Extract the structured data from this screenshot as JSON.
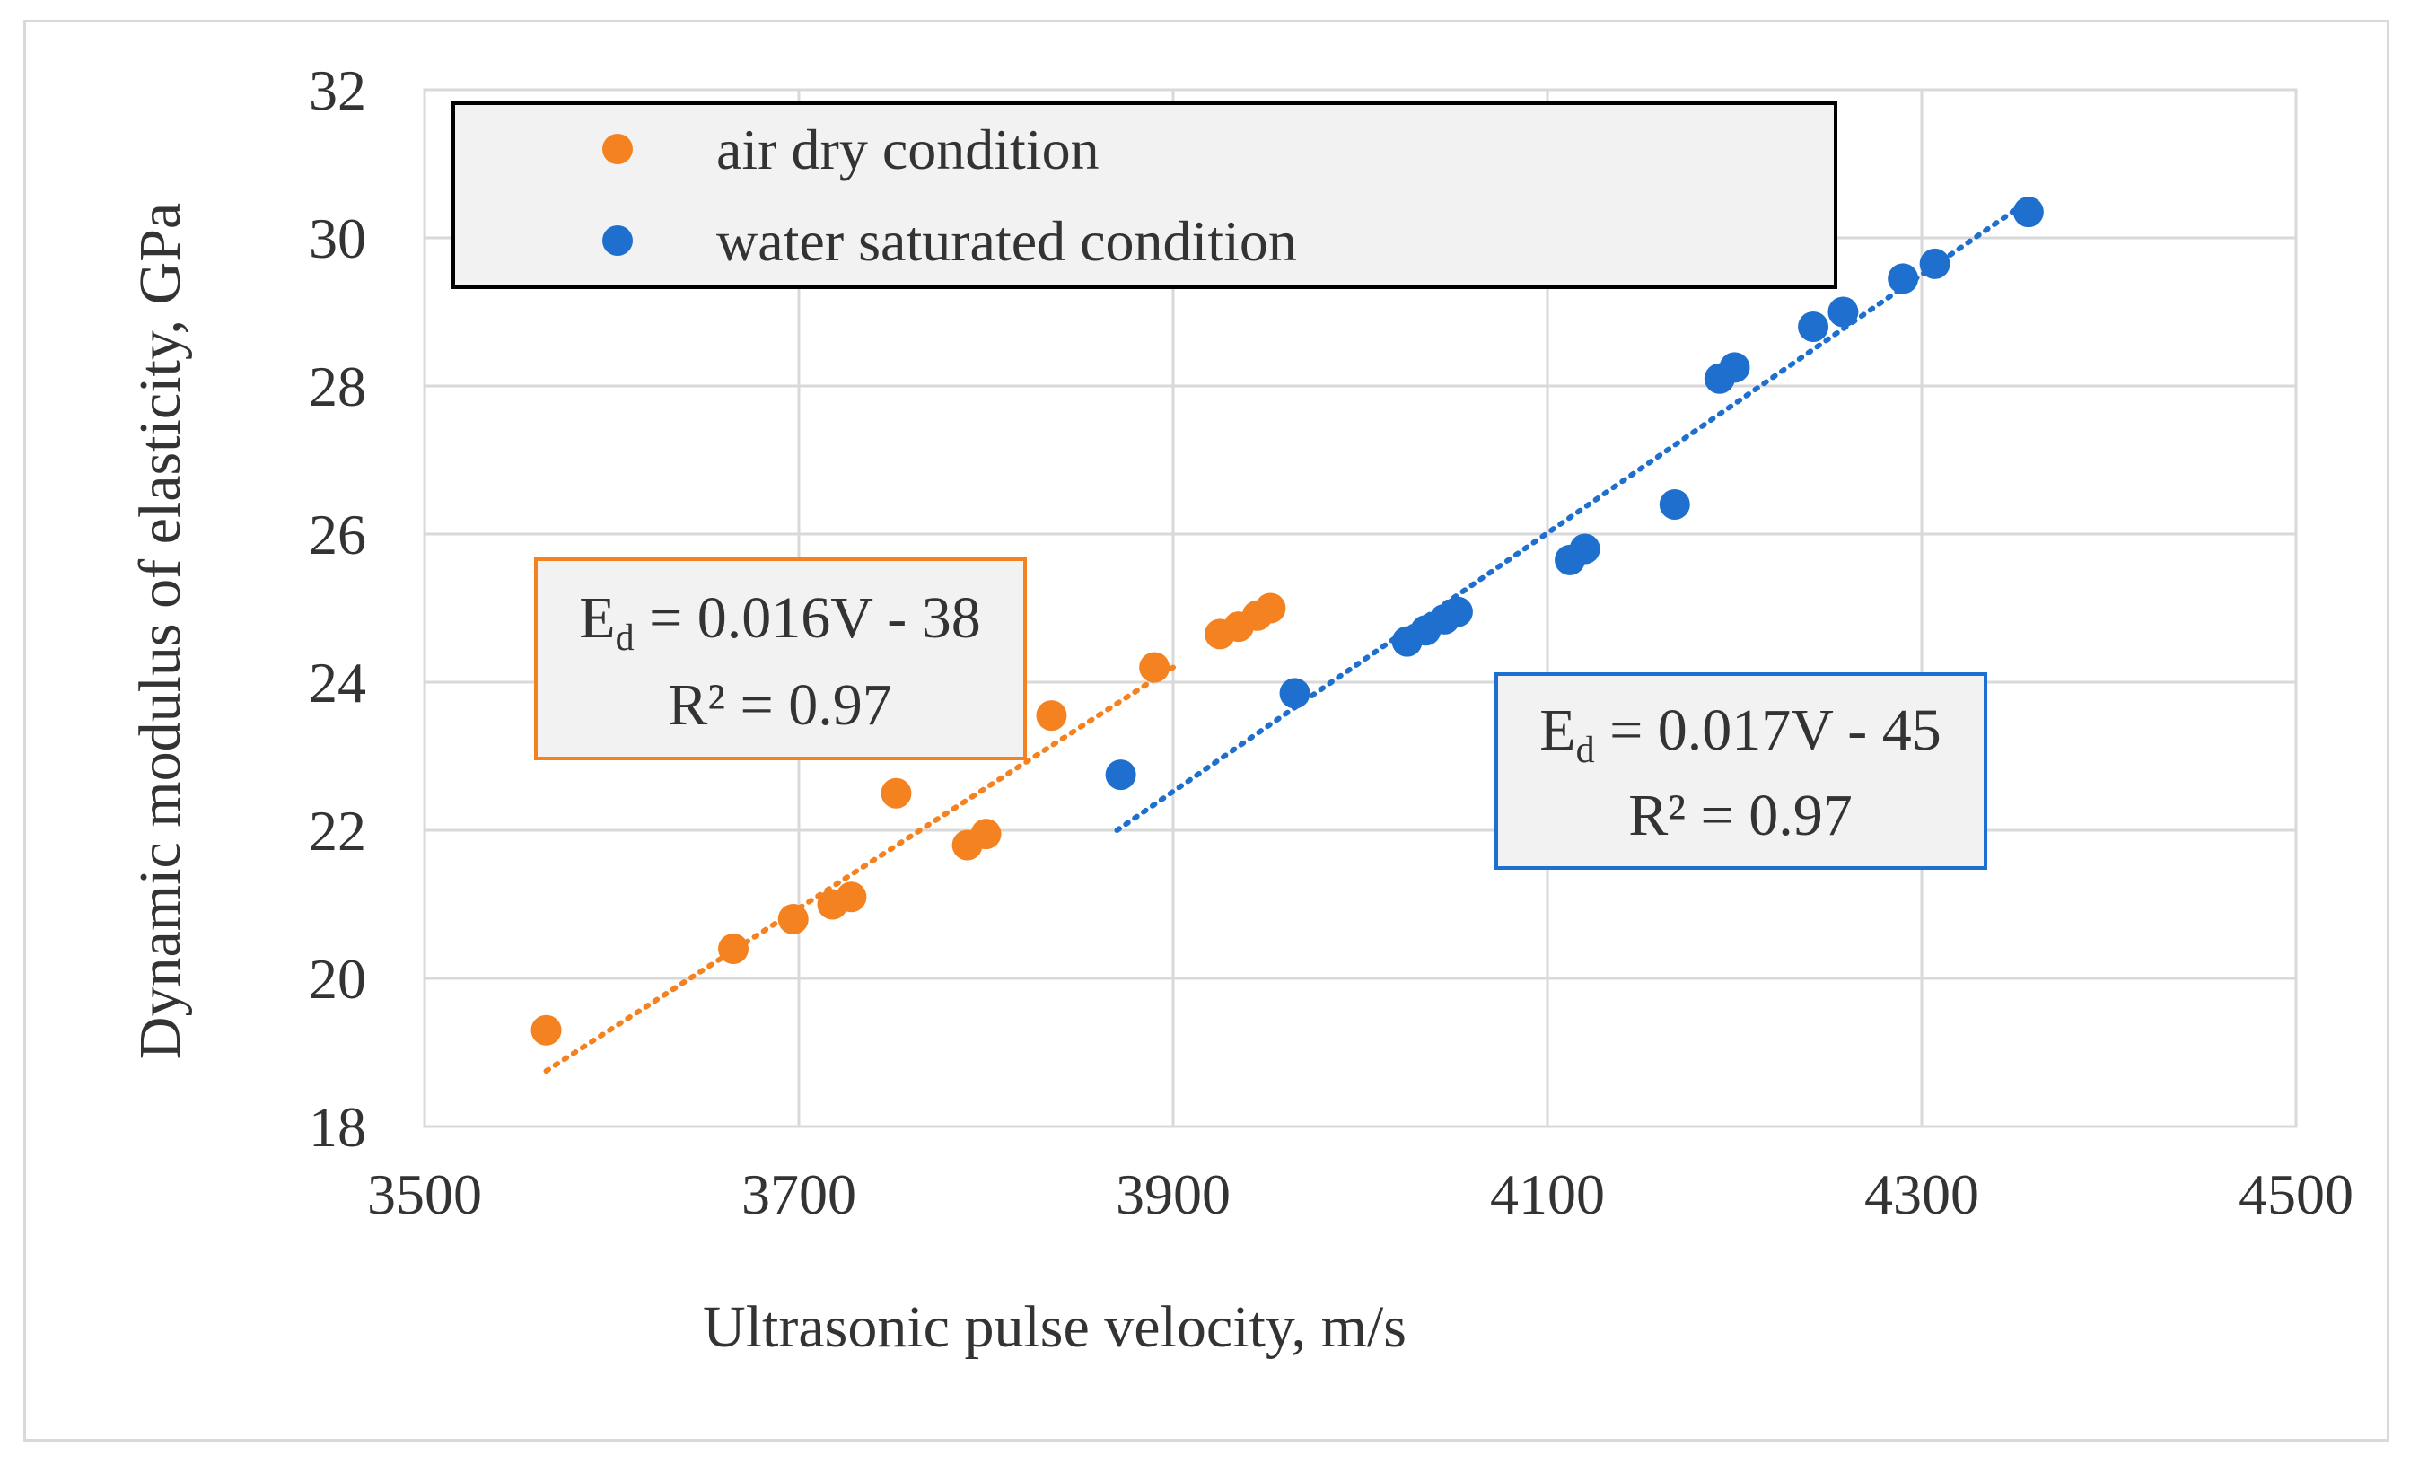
{
  "chart_data": {
    "type": "scatter",
    "title": "",
    "xlabel": "Ultrasonic pulse velocity, m/s",
    "ylabel": "Dynamic modulus of elasticity, GPa",
    "xlim": [
      3500,
      4500
    ],
    "ylim": [
      18,
      32
    ],
    "x_ticks": [
      3500,
      3700,
      3900,
      4100,
      4300,
      4500
    ],
    "y_ticks": [
      18,
      20,
      22,
      24,
      26,
      28,
      30,
      32
    ],
    "grid": true,
    "legend_position": "top",
    "series": [
      {
        "name": "air dry condition",
        "color": "#f58220",
        "points": [
          [
            3565,
            19.3
          ],
          [
            3665,
            20.4
          ],
          [
            3697,
            20.8
          ],
          [
            3718,
            21.0
          ],
          [
            3728,
            21.1
          ],
          [
            3752,
            22.5
          ],
          [
            3790,
            21.8
          ],
          [
            3800,
            21.95
          ],
          [
            3835,
            23.55
          ],
          [
            3890,
            24.2
          ],
          [
            3925,
            24.65
          ],
          [
            3935,
            24.75
          ],
          [
            3945,
            24.9
          ],
          [
            3952,
            25.0
          ]
        ],
        "trendline": {
          "x": [
            3565,
            3900
          ],
          "y": [
            18.75,
            24.2
          ]
        },
        "equation": {
          "lhs": "E",
          "sub": "d",
          "rhs": " = 0.016V - 38",
          "r2": "R² = 0.97"
        }
      },
      {
        "name": "water saturated condition",
        "color": "#1f6fce",
        "points": [
          [
            3872,
            22.75
          ],
          [
            3965,
            23.85
          ],
          [
            4025,
            24.55
          ],
          [
            4035,
            24.7
          ],
          [
            4045,
            24.85
          ],
          [
            4052,
            24.95
          ],
          [
            4112,
            25.65
          ],
          [
            4120,
            25.8
          ],
          [
            4168,
            26.4
          ],
          [
            4192,
            28.1
          ],
          [
            4200,
            28.25
          ],
          [
            4242,
            28.8
          ],
          [
            4258,
            29.0
          ],
          [
            4290,
            29.45
          ],
          [
            4307,
            29.65
          ],
          [
            4357,
            30.35
          ]
        ],
        "trendline": {
          "x": [
            3870,
            4357
          ],
          "y": [
            22.0,
            30.5
          ]
        },
        "equation": {
          "lhs": "E",
          "sub": "d",
          "rhs": " = 0.017V - 45",
          "r2": "R² = 0.97"
        }
      }
    ]
  }
}
